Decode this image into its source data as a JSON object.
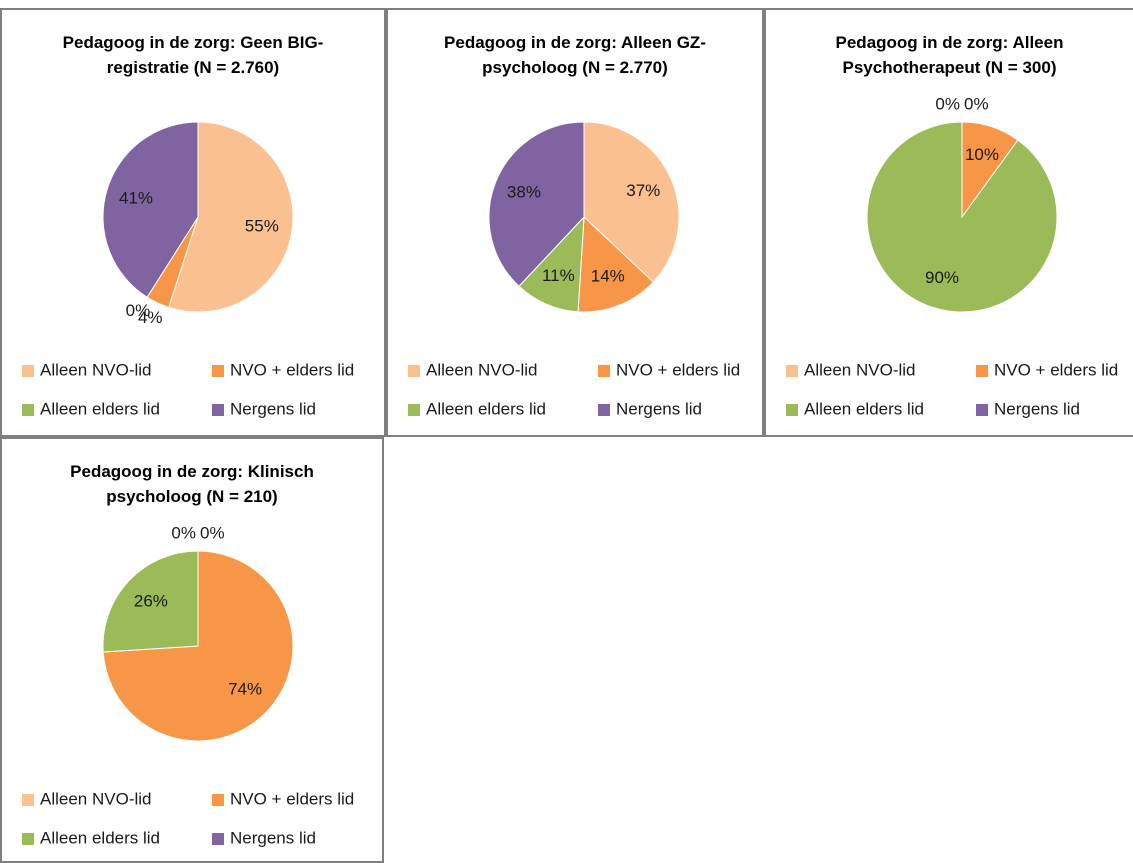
{
  "chart_data": [
    {
      "type": "pie",
      "title": "Pedagoog in de zorg: Geen BIG-registratie (N = 2.760)",
      "categories": [
        "Alleen NVO-lid",
        "NVO + elders lid",
        "Alleen elders lid",
        "Nergens lid"
      ],
      "values": [
        55,
        4,
        0,
        41
      ],
      "value_labels": [
        "55%",
        "4%",
        "0%",
        "41%"
      ],
      "colors": [
        "#fac090",
        "#f79646",
        "#9bbb59",
        "#8064a2"
      ],
      "legend": "bottom"
    },
    {
      "type": "pie",
      "title": "Pedagoog in de zorg: Alleen GZ-psycholoog (N = 2.770)",
      "categories": [
        "Alleen NVO-lid",
        "NVO + elders lid",
        "Alleen elders lid",
        "Nergens lid"
      ],
      "values": [
        37,
        14,
        11,
        38
      ],
      "value_labels": [
        "37%",
        "14%",
        "11%",
        "38%"
      ],
      "colors": [
        "#fac090",
        "#f79646",
        "#9bbb59",
        "#8064a2"
      ],
      "legend": "bottom"
    },
    {
      "type": "pie",
      "title": "Pedagoog in de zorg: Alleen Psychotherapeut (N = 300)",
      "categories": [
        "Alleen NVO-lid",
        "NVO + elders lid",
        "Alleen elders lid",
        "Nergens lid"
      ],
      "values": [
        0,
        10,
        90,
        0
      ],
      "value_labels": [
        "0%",
        "10%",
        "90%",
        "0%"
      ],
      "colors": [
        "#fac090",
        "#f79646",
        "#9bbb59",
        "#8064a2"
      ],
      "legend": "bottom"
    },
    {
      "type": "pie",
      "title": "Pedagoog in de zorg: Klinisch psycholoog (N = 210)",
      "categories": [
        "Alleen NVO-lid",
        "NVO + elders lid",
        "Alleen elders lid",
        "Nergens lid"
      ],
      "values": [
        0,
        74,
        26,
        0
      ],
      "value_labels": [
        "0%",
        "74%",
        "26%",
        "0%"
      ],
      "colors": [
        "#fac090",
        "#f79646",
        "#9bbb59",
        "#8064a2"
      ],
      "legend": "bottom"
    }
  ]
}
